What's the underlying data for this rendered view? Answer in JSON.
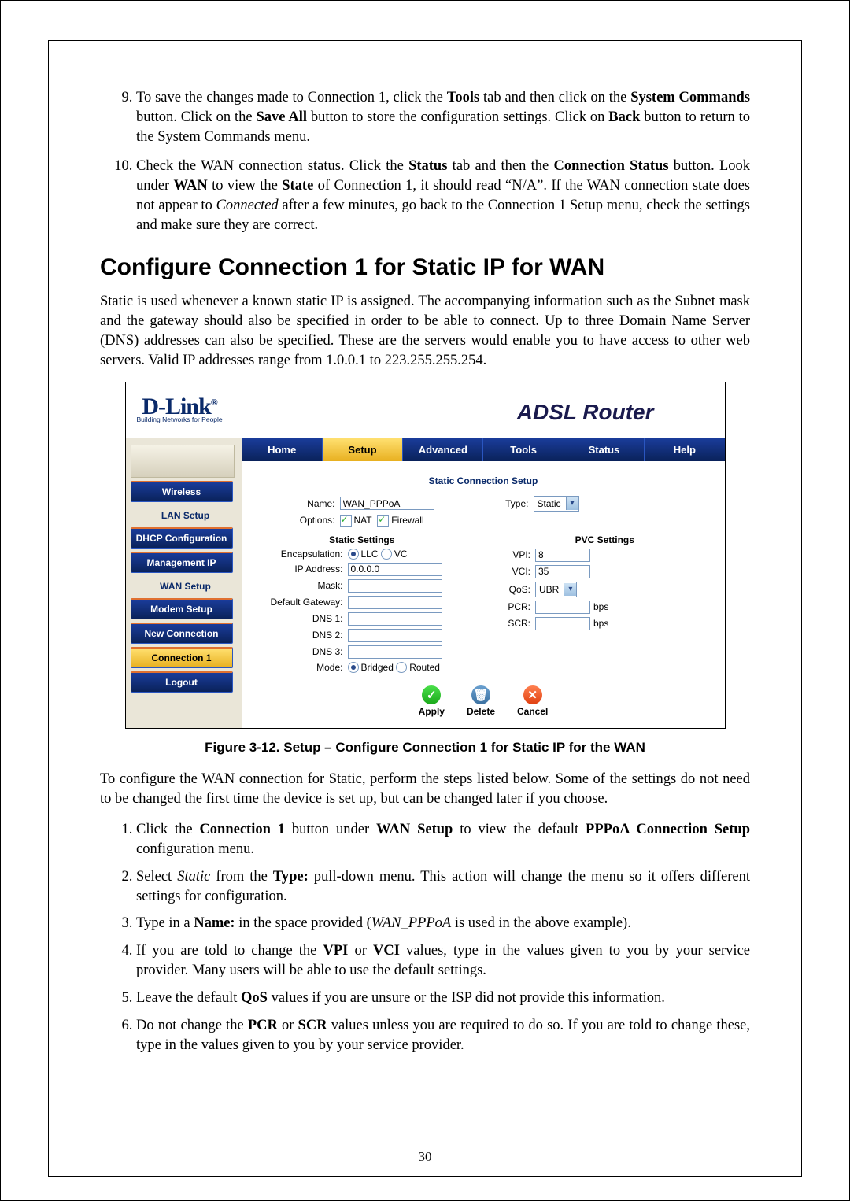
{
  "pre_steps": {
    "start": 9,
    "items": [
      "To save the changes made to Connection 1, click the <b>Tools</b> tab and then click on the <b>System Commands</b> button. Click on the <b>Save All</b> button to store the configuration settings. Click on <b>Back</b> button to return to the System Commands menu.",
      "Check the WAN connection status. Click the <b>Status</b> tab and then the <b>Connection Status</b> button. Look under <b>WAN</b> to view the <b>State</b> of Connection 1, it should read  “N/A”. If the WAN connection state does not appear to <i>Connected</i> after a few minutes, go back to the Connection 1 Setup menu, check the settings and make sure they are correct."
    ]
  },
  "section_heading": "Configure Connection 1 for Static IP for WAN",
  "intro_para": "Static is used whenever a known static IP is assigned. The accompanying information such as the Subnet mask and the gateway should also be specified in order to be able to connect. Up to three Domain Name Server (DNS) addresses can also be specified. These are the servers would enable you to have access to other web servers. Valid IP addresses range from 1.0.0.1 to 223.255.255.254.",
  "router": {
    "brand": "D-Link",
    "brand_tag": "Building Networks for People",
    "title": "ADSL Router",
    "tabs": [
      "Home",
      "Setup",
      "Advanced",
      "Tools",
      "Status",
      "Help"
    ],
    "tab_selected": 1,
    "sidebar": {
      "top_button": "Wireless",
      "group1_label": "LAN Setup",
      "group1": [
        "DHCP Configuration",
        "Management IP"
      ],
      "group2_label": "WAN Setup",
      "group2": [
        "Modem Setup",
        "New Connection",
        "Connection 1"
      ],
      "group2_selected": 2,
      "logout": "Logout"
    },
    "panel": {
      "title": "Static Connection Setup",
      "name_label": "Name:",
      "name_value": "WAN_PPPoA",
      "type_label": "Type:",
      "type_value": "Static",
      "options_label": "Options:",
      "opt_nat": "NAT",
      "opt_firewall": "Firewall",
      "left_title": "Static Settings",
      "encap_label": "Encapsulation:",
      "encap_llc": "LLC",
      "encap_vc": "VC",
      "ip_label": "IP Address:",
      "ip_value": "0.0.0.0",
      "mask_label": "Mask:",
      "gw_label": "Default Gateway:",
      "dns1_label": "DNS 1:",
      "dns2_label": "DNS 2:",
      "dns3_label": "DNS 3:",
      "mode_label": "Mode:",
      "mode_bridged": "Bridged",
      "mode_routed": "Routed",
      "right_title": "PVC Settings",
      "vpi_label": "VPI:",
      "vpi_value": "8",
      "vci_label": "VCI:",
      "vci_value": "35",
      "qos_label": "QoS:",
      "qos_value": "UBR",
      "pcr_label": "PCR:",
      "scr_label": "SCR:",
      "bps": "bps",
      "apply": "Apply",
      "delete": "Delete",
      "cancel": "Cancel"
    }
  },
  "figure_caption": "Figure 3-12. Setup – Configure Connection 1 for Static IP for the WAN",
  "post_para": "To configure the WAN connection for Static, perform the steps listed below. Some of the settings do not need to be changed the first time the device is set up, but can be changed later if you choose.",
  "steps": [
    "Click the <b>Connection 1</b> button under <b>WAN Setup</b> to view the default <b>PPPoA Connection Setup</b> configuration menu.",
    "Select <i>Static</i> from the <b>Type:</b> pull-down menu. This action will change the menu so it offers different settings for configuration.",
    "Type in a <b>Name:</b> in the space provided (<i>WAN_PPPoA</i> is used in the above example).",
    "If you are told to change the <b>VPI</b> or <b>VCI</b> values, type in the values given to you by your service provider. Many users will be able to use the default settings.",
    "Leave the default <b>QoS</b> values if you are unsure or the ISP did not provide this information.",
    "Do not change the <b>PCR</b> or <b>SCR</b> values unless you are required to do so. If you are told to change these, type in the values given to you by your service provider."
  ],
  "page_number": "30"
}
